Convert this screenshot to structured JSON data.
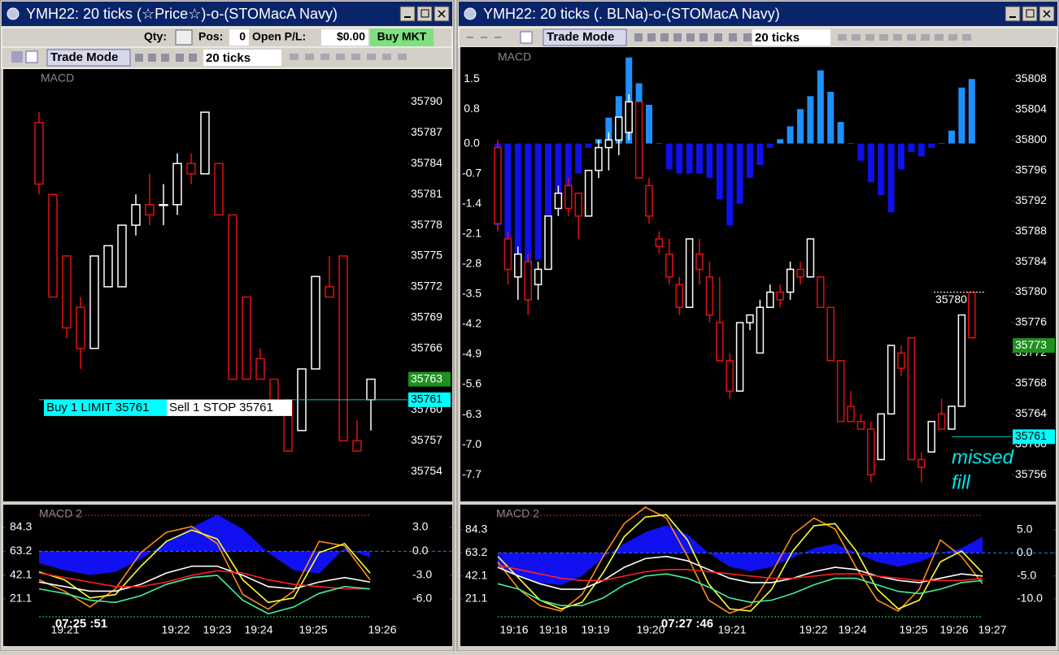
{
  "windows": [
    {
      "title": "YMH22: 20 ticks (☆Price☆)-o-(STOMacA Navy)",
      "toolbar": {
        "qty_label": "Qty:",
        "pos_label": "Pos:",
        "pos_value": 0,
        "pnl_label": "Open P/L:",
        "pnl_value": "$0.00",
        "buy_button": "Buy MKT"
      },
      "trade_mode": "Trade Mode",
      "interval": "20 ticks",
      "price_panel": {
        "label": "MACD",
        "ylim": [
          35751.1,
          35793.2
        ],
        "yticks": [
          35754,
          35757,
          35760,
          35763,
          35766,
          35769,
          35772,
          35775,
          35778,
          35781,
          35784,
          35787,
          35790
        ],
        "up_color": "#ffffff",
        "down_color": "#e01010",
        "candles": {
          "open": [
            35788,
            35781,
            35775,
            35770,
            35766,
            35772,
            35772,
            35778,
            35780,
            35780,
            35780,
            35784,
            35783,
            35784,
            35779,
            35771,
            35765,
            35763,
            35761,
            35758,
            35764,
            35772,
            35775,
            35757,
            35761
          ],
          "close": [
            35782,
            35771,
            35768,
            35766,
            35775,
            35776,
            35778,
            35780,
            35779,
            35780,
            35784,
            35783,
            35789,
            35779,
            35763,
            35763,
            35763,
            35761,
            35756,
            35764,
            35773,
            35771,
            35757,
            35756,
            35763
          ],
          "high": [
            35789,
            35781,
            35775,
            35771,
            35775,
            35776,
            35778,
            35781,
            35783,
            35782,
            35785,
            35785,
            35789,
            35784,
            35779,
            35771,
            35766,
            35763,
            35761,
            35764,
            35773,
            35775,
            35775,
            35759,
            35763
          ],
          "low": [
            35781,
            35771,
            35767,
            35764,
            35766,
            35772,
            35772,
            35777,
            35778,
            35778,
            35779,
            35782,
            35783,
            35779,
            35763,
            35763,
            35763,
            35761,
            35756,
            35758,
            35764,
            35771,
            35757,
            35756,
            35758
          ]
        },
        "price_markers": [
          {
            "value": 35763,
            "color": "#1f8f1f"
          },
          {
            "value": 35761,
            "color": "#00ffff"
          }
        ],
        "order_labels": [
          "Buy 1 LIMIT 35761",
          "Sell 1 STOP 35761"
        ]
      },
      "macd2_panel": {
        "label": "MACD 2",
        "ylim": [
          1.0,
          104.4
        ],
        "yticks": [
          21.1,
          42.1,
          63.2,
          84.3
        ],
        "y2lim": [
          -8.86,
          5.86
        ],
        "y2ticks": [
          {
            "value": -6,
            "label": "-6.0"
          },
          {
            "value": -3,
            "label": "-3.0"
          },
          {
            "value": 0,
            "label": "0.0"
          },
          {
            "value": 3,
            "label": "3.0"
          }
        ],
        "histogram": {
          "color": "#1010f0",
          "values": [
            -1.5,
            -2.4,
            -3.0,
            -2.6,
            -1.0,
            1.2,
            3.0,
            4.6,
            2.8,
            -0.2,
            -2.4,
            -2.8,
            0.4,
            -0.8
          ]
        },
        "series": [
          {
            "color": "#ff8c1a",
            "values": [
              38,
              28,
              14,
              30,
              62,
              80,
              85,
              70,
              25,
              12,
              28,
              72,
              68,
              38
            ]
          },
          {
            "color": "#ffff33",
            "values": [
              45,
              38,
              22,
              25,
              50,
              72,
              82,
              74,
              38,
              18,
              22,
              62,
              70,
              44
            ]
          },
          {
            "color": "#ffffff",
            "values": [
              36,
              32,
              28,
              28,
              34,
              44,
              50,
              50,
              42,
              32,
              30,
              36,
              40,
              36
            ]
          },
          {
            "color": "#ff2020",
            "values": [
              44,
              40,
              36,
              32,
              32,
              36,
              42,
              46,
              44,
              38,
              34,
              32,
              30,
              30
            ]
          },
          {
            "color": "#40f0a0",
            "values": [
              30,
              26,
              20,
              18,
              24,
              34,
              40,
              42,
              20,
              8,
              14,
              26,
              32,
              30
            ]
          }
        ],
        "x_labels": [
          "19:21",
          "19:22",
          "19:23",
          "19:24",
          "19:25",
          "19:26"
        ],
        "time_label": "07:25 :51"
      }
    },
    {
      "title": "YMH22: 20 ticks (. BLNa)-o-(STOMacA Navy)",
      "trade_mode": "Trade Mode",
      "interval": "20 ticks",
      "price_panel": {
        "label": "MACD",
        "ylim": [
          35752.5,
          35812.2
        ],
        "yticks": [
          35756,
          35760,
          35764,
          35768,
          35772,
          35776,
          35780,
          35784,
          35788,
          35792,
          35796,
          35800,
          35804,
          35808
        ],
        "up_color": "#ffffff",
        "down_color": "#e01010",
        "candles": {
          "open": [
            35799,
            35787,
            35782,
            35784,
            35781,
            35783,
            35791,
            35794,
            35793,
            35790,
            35796,
            35799,
            35800,
            35801,
            35805,
            35794,
            35787,
            35785,
            35781,
            35778,
            35785,
            35782,
            35776,
            35771,
            35767,
            35776,
            35772,
            35778,
            35780,
            35780,
            35783,
            35782,
            35782,
            35778,
            35771,
            35765,
            35763,
            35762,
            35758,
            35764,
            35772,
            35774,
            35758,
            35759,
            35764,
            35762,
            35765,
            35780
          ],
          "close": [
            35789,
            35783,
            35785,
            35779,
            35783,
            35790,
            35793,
            35791,
            35790,
            35796,
            35799,
            35800,
            35803,
            35805,
            35795,
            35790,
            35786,
            35782,
            35778,
            35787,
            35783,
            35777,
            35771,
            35767,
            35776,
            35777,
            35778,
            35780,
            35779,
            35783,
            35782,
            35787,
            35778,
            35771,
            35763,
            35763,
            35762,
            35756,
            35764,
            35773,
            35770,
            35758,
            35757,
            35763,
            35762,
            35765,
            35777,
            35774
          ],
          "high": [
            35800,
            35788,
            35786,
            35785,
            35784,
            35790,
            35794,
            35795,
            35793,
            35796,
            35800,
            35801,
            35803,
            35806,
            35805,
            35795,
            35788,
            35787,
            35782,
            35787,
            35787,
            35784,
            35782,
            35772,
            35776,
            35777,
            35779,
            35781,
            35781,
            35784,
            35784,
            35787,
            35782,
            35778,
            35771,
            35767,
            35764,
            35763,
            35764,
            35773,
            35773,
            35774,
            35759,
            35763,
            35766,
            35765,
            35777,
            35780
          ],
          "low": [
            35788,
            35781,
            35779,
            35777,
            35779,
            35783,
            35790,
            35790,
            35787,
            35790,
            35795,
            35796,
            35798,
            35800,
            35795,
            35789,
            35785,
            35781,
            35777,
            35778,
            35781,
            35776,
            35771,
            35766,
            35767,
            35775,
            35772,
            35778,
            35778,
            35779,
            35781,
            35782,
            35778,
            35771,
            35763,
            35763,
            35762,
            35755,
            35758,
            35764,
            35769,
            35758,
            35755,
            35759,
            35762,
            35762,
            35765,
            35774
          ]
        },
        "macd": {
          "ylim": [
            -8.32,
            2.24
          ],
          "yticks": [
            1.5,
            0.8,
            {
              "value": 0,
              "label": "0.0"
            },
            -0.7,
            -1.4,
            -2.1,
            -2.8,
            -3.5,
            -4.2,
            -4.9,
            -5.6,
            -6.3,
            {
              "value": -7,
              "label": "-7.0"
            },
            -7.7
          ],
          "up_color": "#1e8fff",
          "down_color": "#1010e8",
          "values": [
            -1.9,
            -2.2,
            -2.8,
            -2.8,
            -2.7,
            -2.2,
            -1.4,
            -1.2,
            -0.7,
            -0.1,
            0.1,
            0.6,
            1.1,
            2.0,
            1.4,
            0.9,
            0.0,
            -0.6,
            -0.7,
            -0.7,
            -0.7,
            -0.8,
            -1.3,
            -1.9,
            -1.4,
            -0.8,
            -0.5,
            -0.1,
            0.1,
            0.4,
            0.8,
            1.1,
            1.7,
            1.2,
            0.5,
            0.0,
            -0.4,
            -0.9,
            -1.2,
            -1.6,
            -0.6,
            -0.2,
            -0.3,
            -0.1,
            0.0,
            0.3,
            1.3,
            1.5
          ]
        },
        "high_label": {
          "value": 35780
        },
        "price_markers": [
          {
            "value": 35773,
            "color": "#1f8f1f"
          },
          {
            "value": 35761,
            "color": "#00ffff"
          }
        ],
        "annotation": [
          "missed",
          "fill"
        ]
      },
      "macd2_panel": {
        "label": "MACD 2",
        "ylim": [
          0.3,
          107.3
        ],
        "yticks": [
          21.1,
          42.1,
          63.2,
          84.3
        ],
        "y2lim": [
          -14.94,
          10.47
        ],
        "y2ticks": [
          {
            "value": -10,
            "label": "-10.0"
          },
          {
            "value": -5,
            "label": "-5.0"
          },
          {
            "value": 0,
            "label": "0.0"
          },
          {
            "value": 5,
            "label": "5.0"
          }
        ],
        "histogram": {
          "color": "#1010f0",
          "values": [
            -3,
            -5,
            -6.5,
            -7,
            -5,
            -1,
            2,
            4.5,
            6,
            4,
            0,
            -3,
            -4,
            -3,
            -1,
            1,
            2,
            0,
            -2,
            -3,
            -2,
            0,
            1,
            3.5
          ]
        },
        "series": [
          {
            "color": "#ff8c1a",
            "values": [
              55,
              30,
              15,
              10,
              25,
              60,
              90,
              105,
              95,
              60,
              20,
              8,
              15,
              45,
              80,
              95,
              85,
              50,
              20,
              10,
              30,
              75,
              60,
              35
            ]
          },
          {
            "color": "#ffff33",
            "values": [
              60,
              40,
              20,
              12,
              18,
              45,
              78,
              96,
              98,
              75,
              35,
              12,
              10,
              30,
              65,
              88,
              90,
              65,
              30,
              12,
              20,
              55,
              65,
              45
            ]
          },
          {
            "color": "#ffffff",
            "values": [
              50,
              42,
              35,
              30,
              30,
              38,
              50,
              58,
              60,
              56,
              48,
              40,
              36,
              36,
              40,
              46,
              50,
              48,
              42,
              38,
              36,
              40,
              44,
              42
            ]
          },
          {
            "color": "#ff2020",
            "values": [
              52,
              48,
              44,
              40,
              38,
              38,
              42,
              46,
              48,
              48,
              46,
              44,
              42,
              40,
              40,
              42,
              44,
              44,
              42,
              40,
              38,
              38,
              38,
              40
            ]
          },
          {
            "color": "#40f0a0",
            "values": [
              35,
              30,
              20,
              15,
              15,
              22,
              34,
              42,
              44,
              40,
              32,
              22,
              18,
              20,
              26,
              34,
              40,
              40,
              34,
              28,
              26,
              30,
              36,
              38
            ]
          }
        ],
        "x_labels": [
          "19:16",
          "19:18",
          "19:19",
          "19:20",
          "19:21",
          "19:22",
          "19:24",
          "19:25",
          "19:26",
          "19:27"
        ],
        "time_label": "07:27 :46"
      }
    }
  ]
}
